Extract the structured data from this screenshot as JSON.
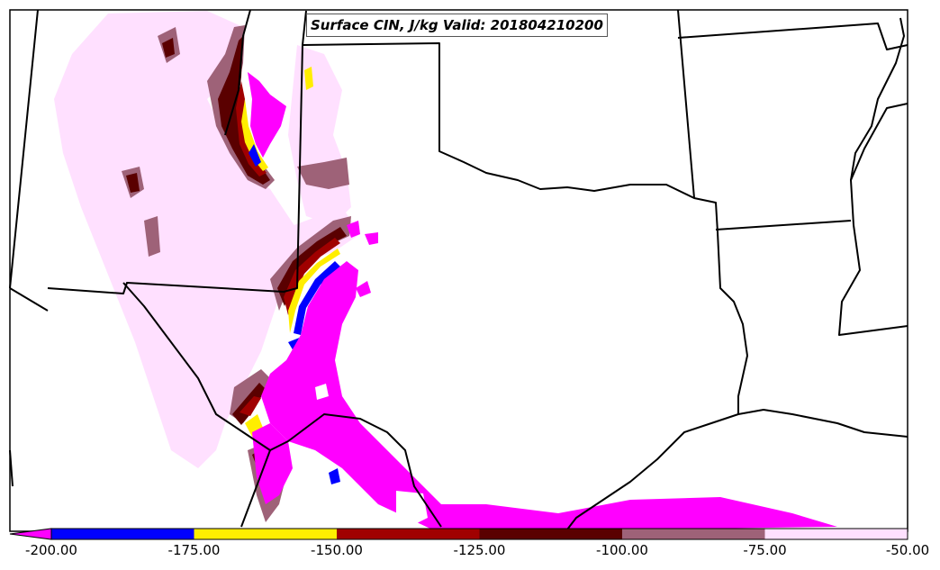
{
  "title": "Surface CIN, J/kg Valid: 201804210200",
  "colorbar": {
    "ticks": [
      "-200.00",
      "-175.00",
      "-150.00",
      "-125.00",
      "-100.00",
      "-75.00",
      "-50.00"
    ],
    "bins": [
      {
        "from": -200,
        "to": -175,
        "color": "#0000ff"
      },
      {
        "from": -175,
        "to": -150,
        "color": "#ffee00"
      },
      {
        "from": -150,
        "to": -125,
        "color": "#a00000"
      },
      {
        "from": -125,
        "to": -100,
        "color": "#5a0000"
      },
      {
        "from": -100,
        "to": -75,
        "color": "#9e6278"
      },
      {
        "from": -75,
        "to": -50,
        "color": "#ffe0ff"
      }
    ],
    "under_color": "#ff00ff",
    "extend": "min"
  },
  "colors": {
    "strong_cin": "#ff00ff",
    "blue": "#0000ff",
    "yellow": "#ffee00",
    "red": "#a00000",
    "dark_red": "#5a0000",
    "mauve": "#9e6278",
    "light_pink": "#ffe0ff",
    "boundaries": "#000000"
  }
}
